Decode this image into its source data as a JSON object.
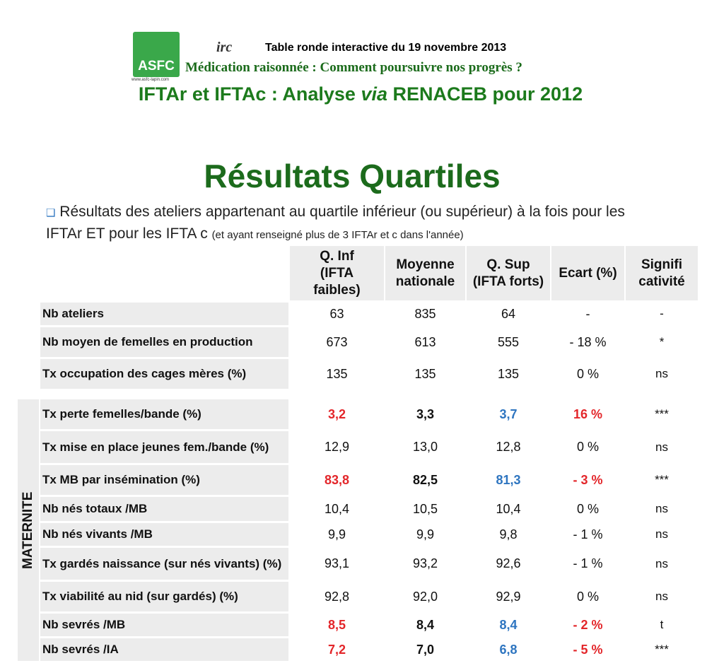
{
  "header": {
    "logo": "ASFC",
    "logo_url": "www.asfc-lapin.com",
    "event_logo": "irc",
    "event": "Table ronde interactive du 19 novembre 2013",
    "subtitle": "Médication raisonnée : Comment poursuivre nos progrès ?",
    "title_parts": [
      "IFTAr et IFTAc : Analyse ",
      "via",
      " RENACEB pour 2012"
    ]
  },
  "title": "Résultats Quartiles",
  "intro": {
    "bullet": "❑",
    "text": "Résultats des ateliers appartenant au quartile inférieur (ou supérieur) à la fois pour les IFTAr ET pour les IFTA c",
    "note": "(et ayant renseigné plus de 3 IFTAr et c dans l'année)"
  },
  "table": {
    "colors": {
      "low": "#e3262a",
      "high": "#2e75c0",
      "ecart": "#e3262a"
    },
    "columns": [
      [
        "Q. Inf",
        "(IFTA",
        "faibles)"
      ],
      [
        "Moyenne",
        "nationale"
      ],
      [
        "Q. Sup",
        "(IFTA forts)"
      ],
      [
        "Ecart (%)"
      ],
      [
        "Signifi",
        "cativité"
      ]
    ],
    "section": "MATERNITE",
    "rows": [
      {
        "label": "Nb ateliers",
        "cells": [
          "63",
          "835",
          "64",
          "-",
          "-"
        ]
      },
      {
        "label": "Nb moyen de femelles en production",
        "cells": [
          "673",
          "613",
          "555",
          "- 18 %",
          "*"
        ]
      },
      {
        "label": "Tx occupation des cages mères (%)",
        "cells": [
          "135",
          "135",
          "135",
          "0 %",
          "ns"
        ]
      },
      {
        "label": "Tx perte femelles/bande (%)",
        "cells": [
          "3,2",
          "3,3",
          "3,7",
          "16 %",
          "***"
        ],
        "emphasis": true
      },
      {
        "label": "Tx mise en place jeunes fem./bande (%)",
        "cells": [
          "12,9",
          "13,0",
          "12,8",
          "0 %",
          "ns"
        ]
      },
      {
        "label": "Tx MB par insémination (%)",
        "cells": [
          "83,8",
          "82,5",
          "81,3",
          "- 3 %",
          "***"
        ],
        "emphasis": true
      },
      {
        "label": "Nb nés totaux /MB",
        "cells": [
          "10,4",
          "10,5",
          "10,4",
          "0 %",
          "ns"
        ]
      },
      {
        "label": "Nb nés vivants /MB",
        "cells": [
          "9,9",
          "9,9",
          "9,8",
          "- 1 %",
          "ns"
        ]
      },
      {
        "label": "Tx gardés naissance (sur nés vivants) (%)",
        "cells": [
          "93,1",
          "93,2",
          "92,6",
          "- 1 %",
          "ns"
        ]
      },
      {
        "label": "Tx viabilité au nid (sur gardés) (%)",
        "cells": [
          "92,8",
          "92,0",
          "92,9",
          "0 %",
          "ns"
        ]
      },
      {
        "label": "Nb sevrés /MB",
        "cells": [
          "8,5",
          "8,4",
          "8,4",
          "- 2 %",
          "t"
        ],
        "emphasis": true
      },
      {
        "label": "Nb sevrés /IA",
        "cells": [
          "7,2",
          "7,0",
          "6,8",
          "- 5 %",
          "***"
        ],
        "emphasis": true
      }
    ]
  }
}
